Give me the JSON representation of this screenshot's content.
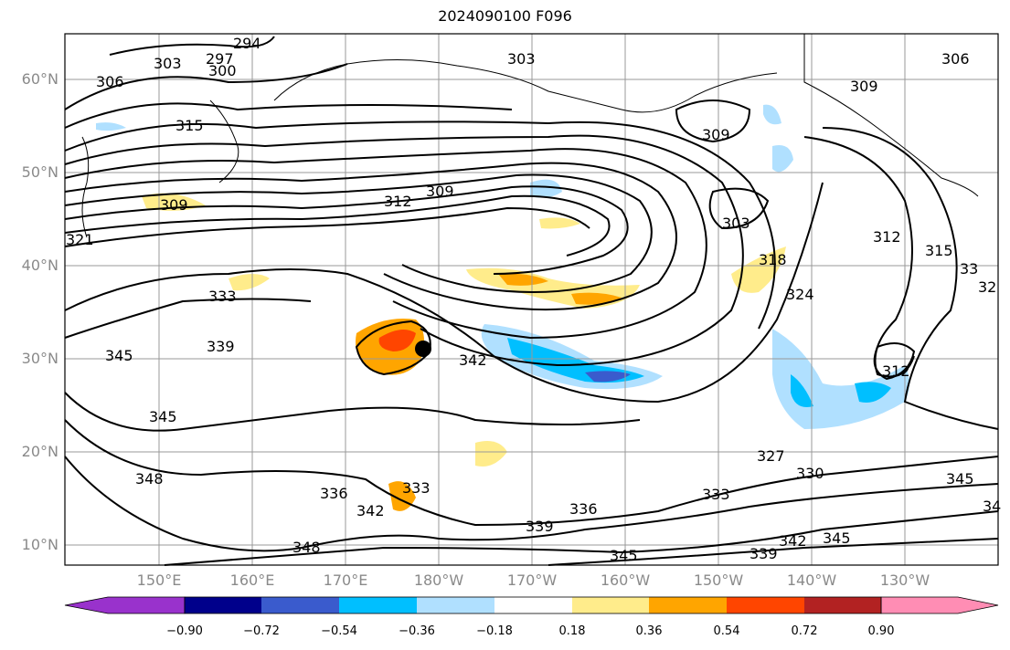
{
  "title": "2024090100 F096",
  "lat_labels": [
    "60°N",
    "50°N",
    "40°N",
    "30°N",
    "20°N",
    "10°N"
  ],
  "lon_labels": [
    "150°E",
    "160°E",
    "170°E",
    "180°W",
    "170°W",
    "160°W",
    "150°W",
    "140°W",
    "130°W"
  ],
  "contour_labels": [
    "294",
    "297",
    "300",
    "303",
    "306",
    "303",
    "306",
    "309",
    "315",
    "309",
    "309",
    "312",
    "309",
    "321",
    "303",
    "318",
    "324",
    "312",
    "315",
    "33",
    "32",
    "333",
    "339",
    "342",
    "345",
    "345",
    "348",
    "312",
    "327",
    "330",
    "345",
    "34",
    "336",
    "333",
    "342",
    "339",
    "336",
    "333",
    "345",
    "339",
    "342",
    "345",
    "348"
  ],
  "marker": {
    "name": "storm-center",
    "color": "#000000"
  },
  "colorbar": {
    "ticks": [
      "−0.90",
      "−0.72",
      "−0.54",
      "−0.36",
      "−0.18",
      "0.18",
      "0.36",
      "0.54",
      "0.72",
      "0.90"
    ],
    "colors": [
      "#9932cc",
      "#00008b",
      "#3a5bcd",
      "#00bfff",
      "#b0e0ff",
      "#ffffff",
      "#ffec8b",
      "#ffa500",
      "#ff4500",
      "#b22222",
      "#ff8db4"
    ]
  }
}
